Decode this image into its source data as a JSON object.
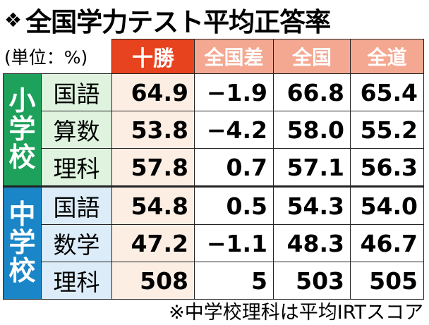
{
  "title": {
    "mark": "❖",
    "text": "全国学力テスト平均正答率"
  },
  "unit_label": "(単位：%)",
  "columns": [
    "十勝",
    "全国差",
    "全国",
    "全道"
  ],
  "groups": [
    {
      "school": [
        "小",
        "学",
        "校"
      ],
      "rows": [
        {
          "subject": "国語",
          "values": [
            "64.9",
            "−1.9",
            "66.8",
            "65.4"
          ]
        },
        {
          "subject": "算数",
          "values": [
            "53.8",
            "−4.2",
            "58.0",
            "55.2"
          ]
        },
        {
          "subject": "理科",
          "values": [
            "57.8",
            "0.7",
            "57.1",
            "56.3"
          ]
        }
      ]
    },
    {
      "school": [
        "中",
        "学",
        "校"
      ],
      "rows": [
        {
          "subject": "国語",
          "values": [
            "54.8",
            "0.5",
            "54.3",
            "54.0"
          ]
        },
        {
          "subject": "数学",
          "values": [
            "47.2",
            "−1.1",
            "48.3",
            "46.7"
          ]
        },
        {
          "subject": "理科",
          "values": [
            "508",
            "5",
            "503",
            "505"
          ]
        }
      ]
    }
  ],
  "footnote": "※中学校理科は平均IRTスコア",
  "colors": {
    "tokachi_header": "#e8431f",
    "other_header": "#f4a891",
    "elementary": "#1ea15b",
    "middle": "#1a86c7"
  }
}
